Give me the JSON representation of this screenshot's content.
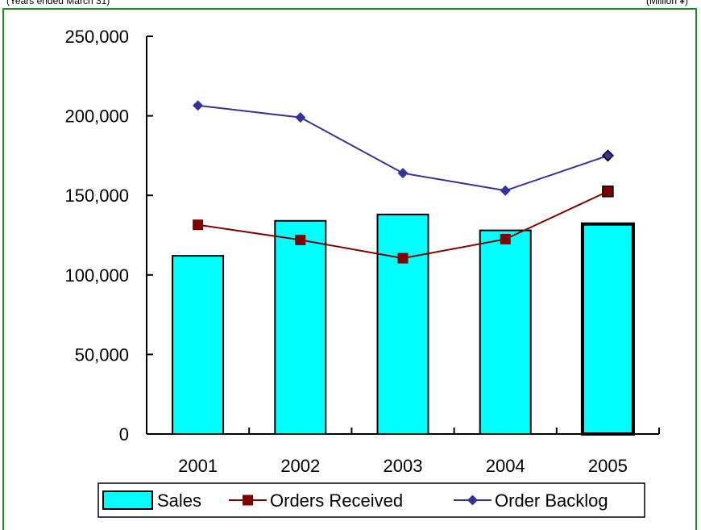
{
  "header": {
    "left_note": "(Years ended March 31)",
    "right_note": "(Million ¥)"
  },
  "colors": {
    "frame": "#228B22",
    "sales_fill": "#00FFFF",
    "orders_received": "#800000",
    "order_backlog": "#333399"
  },
  "chart_data": {
    "type": "bar",
    "categories": [
      "2001",
      "2002",
      "2003",
      "2004",
      "2005"
    ],
    "ylim": [
      0,
      250000
    ],
    "yticks": [
      0,
      50000,
      100000,
      150000,
      200000,
      250000
    ],
    "ytick_labels": [
      "0",
      "50,000",
      "100,000",
      "150,000",
      "200,000",
      "250,000"
    ],
    "series": [
      {
        "name": "Sales",
        "kind": "bar",
        "values": [
          112000,
          134000,
          138000,
          128000,
          132000
        ]
      },
      {
        "name": "Orders Received",
        "kind": "line",
        "marker": "square",
        "values": [
          131500,
          122000,
          110500,
          122500,
          152500
        ]
      },
      {
        "name": "Order Backlog",
        "kind": "line",
        "marker": "diamond",
        "values": [
          206500,
          199000,
          164000,
          153000,
          175000
        ]
      }
    ],
    "legend_position": "bottom",
    "grid": false
  }
}
